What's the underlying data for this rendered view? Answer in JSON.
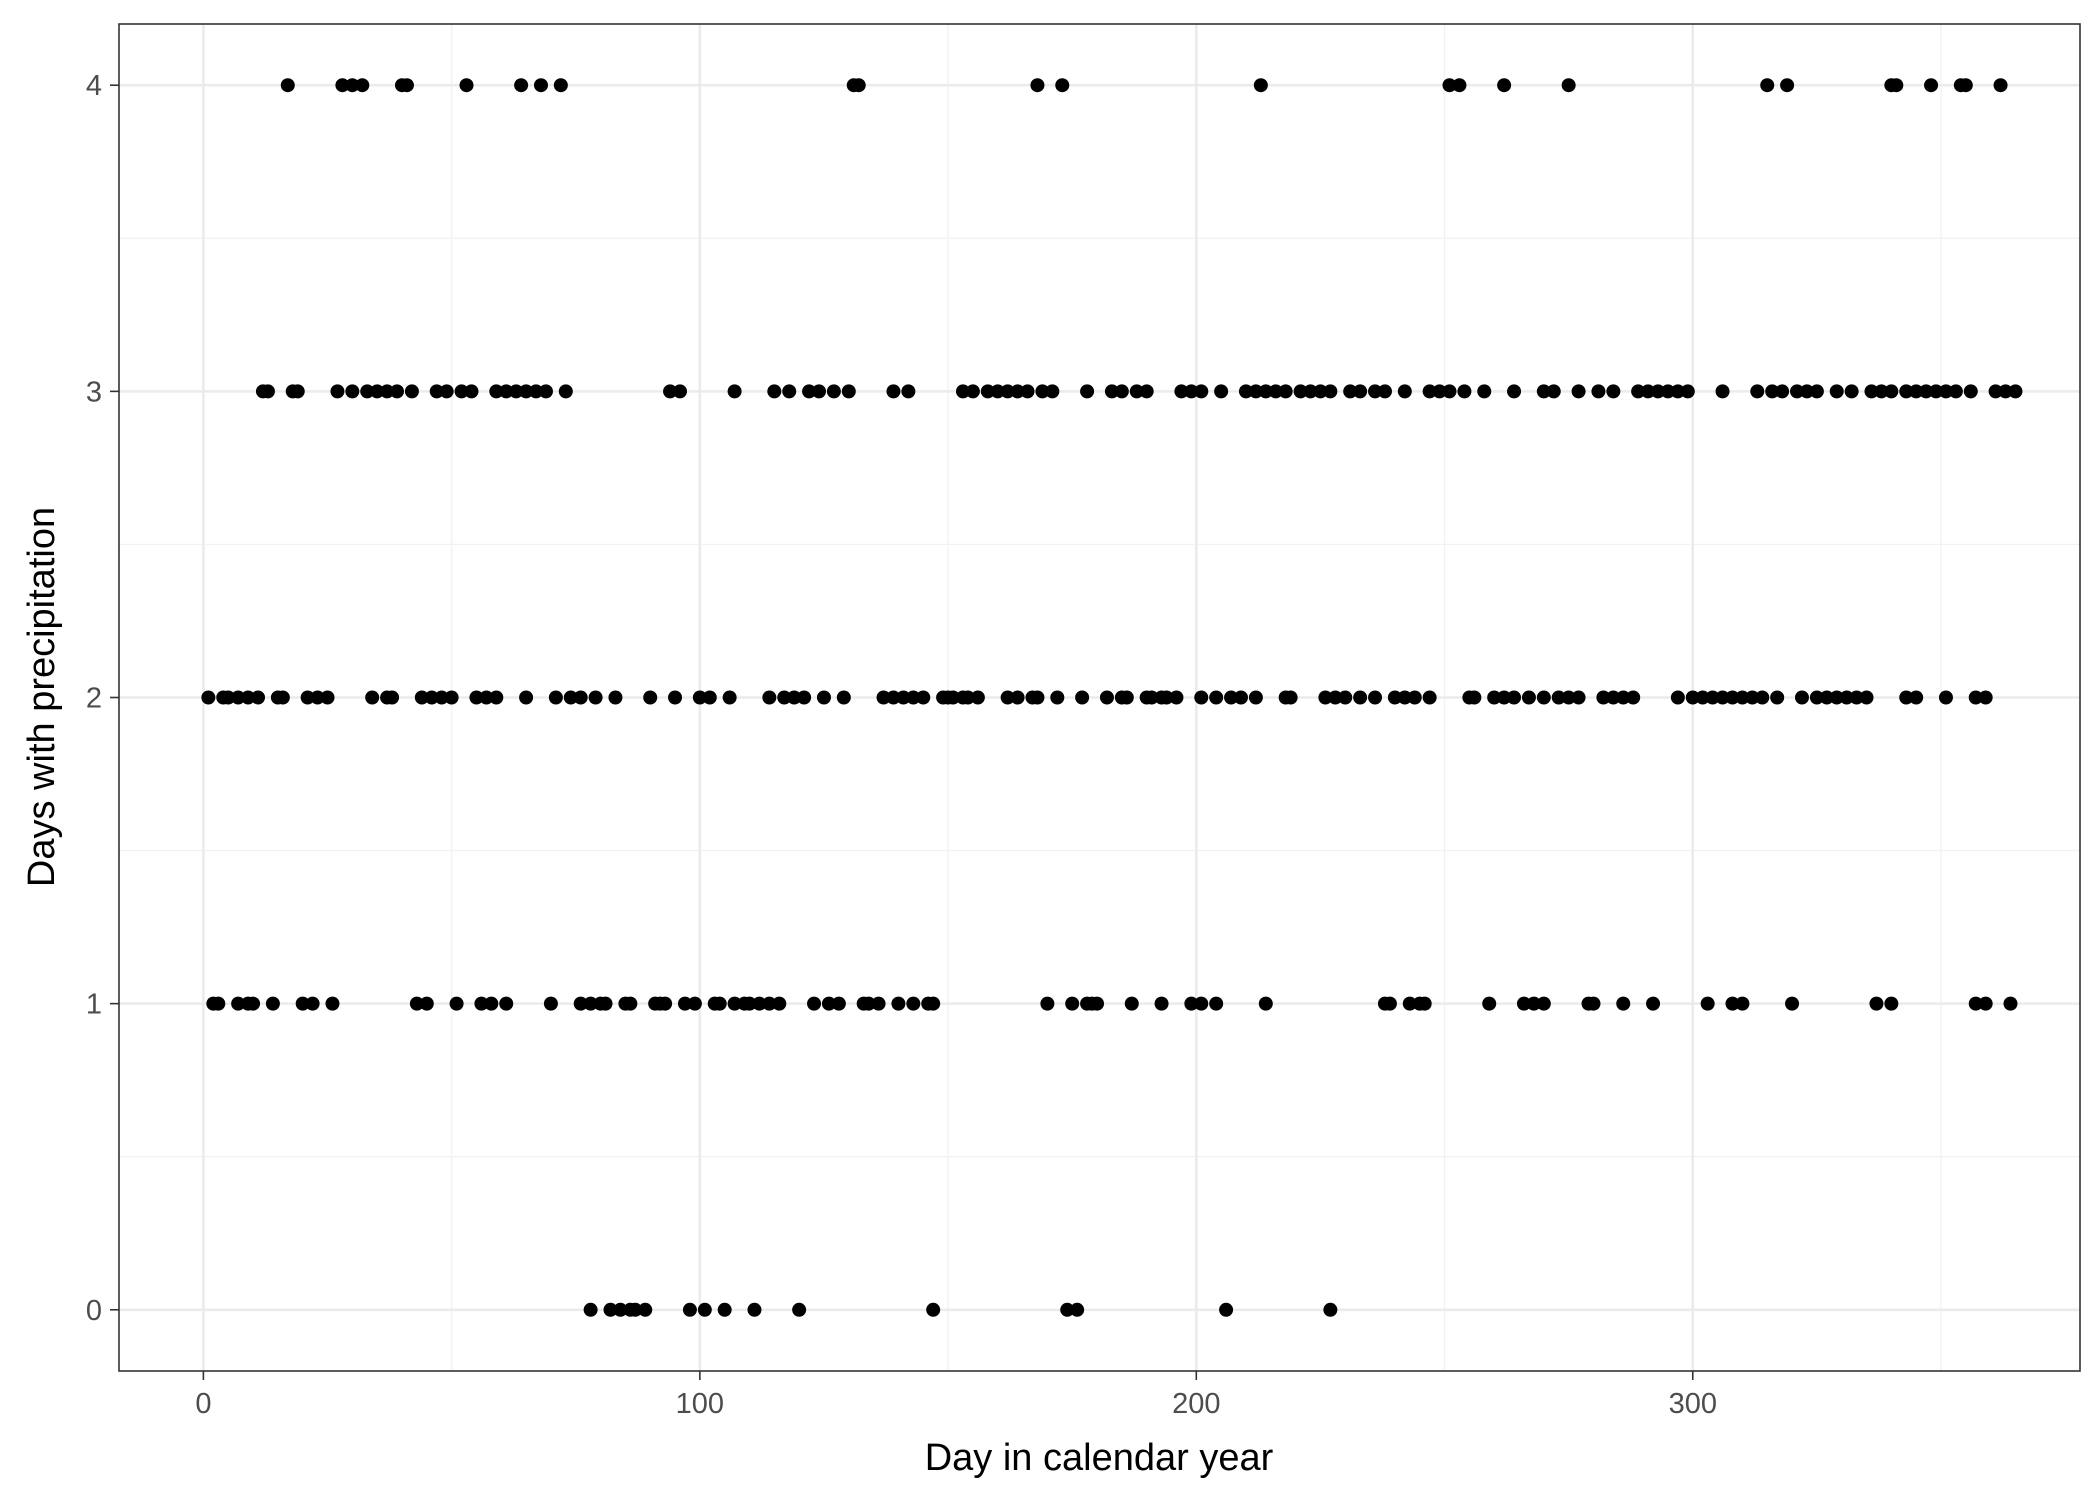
{
  "chart_data": {
    "type": "scatter",
    "title": "",
    "xlabel": "Day in calendar year",
    "ylabel": "Days with precipitation",
    "xlim": [
      -17,
      378
    ],
    "ylim": [
      -0.2,
      4.2
    ],
    "x_ticks": [
      0,
      100,
      200,
      300
    ],
    "x_tick_labels": [
      "0",
      "100",
      "200",
      "300"
    ],
    "y_ticks": [
      0,
      1,
      2,
      3,
      4
    ],
    "y_tick_labels": [
      "0",
      "1",
      "2",
      "3",
      "4"
    ],
    "grid": true,
    "legend": "none",
    "colors": {
      "point": "#000000",
      "grid_major": "#ebebeb",
      "grid_minor": "#f2f2f2",
      "panel_border": "#333333",
      "tick_text": "#4d4d4d"
    },
    "points": [
      {
        "day": 17,
        "value": 4
      },
      {
        "day": 28,
        "value": 4
      },
      {
        "day": 30,
        "value": 4
      },
      {
        "day": 32,
        "value": 4
      },
      {
        "day": 40,
        "value": 4
      },
      {
        "day": 41,
        "value": 4
      },
      {
        "day": 53,
        "value": 4
      },
      {
        "day": 64,
        "value": 4
      },
      {
        "day": 68,
        "value": 4
      },
      {
        "day": 72,
        "value": 4
      },
      {
        "day": 131,
        "value": 4
      },
      {
        "day": 132,
        "value": 4
      },
      {
        "day": 168,
        "value": 4
      },
      {
        "day": 173,
        "value": 4
      },
      {
        "day": 213,
        "value": 4
      },
      {
        "day": 251,
        "value": 4
      },
      {
        "day": 253,
        "value": 4
      },
      {
        "day": 262,
        "value": 4
      },
      {
        "day": 275,
        "value": 4
      },
      {
        "day": 315,
        "value": 4
      },
      {
        "day": 319,
        "value": 4
      },
      {
        "day": 340,
        "value": 4
      },
      {
        "day": 341,
        "value": 4
      },
      {
        "day": 348,
        "value": 4
      },
      {
        "day": 354,
        "value": 4
      },
      {
        "day": 355,
        "value": 4
      },
      {
        "day": 362,
        "value": 4
      },
      {
        "day": 12,
        "value": 3
      },
      {
        "day": 13,
        "value": 3
      },
      {
        "day": 18,
        "value": 3
      },
      {
        "day": 19,
        "value": 3
      },
      {
        "day": 27,
        "value": 3
      },
      {
        "day": 30,
        "value": 3
      },
      {
        "day": 33,
        "value": 3
      },
      {
        "day": 35,
        "value": 3
      },
      {
        "day": 37,
        "value": 3
      },
      {
        "day": 39,
        "value": 3
      },
      {
        "day": 42,
        "value": 3
      },
      {
        "day": 47,
        "value": 3
      },
      {
        "day": 49,
        "value": 3
      },
      {
        "day": 52,
        "value": 3
      },
      {
        "day": 54,
        "value": 3
      },
      {
        "day": 59,
        "value": 3
      },
      {
        "day": 61,
        "value": 3
      },
      {
        "day": 63,
        "value": 3
      },
      {
        "day": 65,
        "value": 3
      },
      {
        "day": 67,
        "value": 3
      },
      {
        "day": 69,
        "value": 3
      },
      {
        "day": 73,
        "value": 3
      },
      {
        "day": 94,
        "value": 3
      },
      {
        "day": 96,
        "value": 3
      },
      {
        "day": 107,
        "value": 3
      },
      {
        "day": 115,
        "value": 3
      },
      {
        "day": 118,
        "value": 3
      },
      {
        "day": 122,
        "value": 3
      },
      {
        "day": 124,
        "value": 3
      },
      {
        "day": 127,
        "value": 3
      },
      {
        "day": 130,
        "value": 3
      },
      {
        "day": 139,
        "value": 3
      },
      {
        "day": 142,
        "value": 3
      },
      {
        "day": 153,
        "value": 3
      },
      {
        "day": 155,
        "value": 3
      },
      {
        "day": 158,
        "value": 3
      },
      {
        "day": 160,
        "value": 3
      },
      {
        "day": 162,
        "value": 3
      },
      {
        "day": 164,
        "value": 3
      },
      {
        "day": 166,
        "value": 3
      },
      {
        "day": 169,
        "value": 3
      },
      {
        "day": 171,
        "value": 3
      },
      {
        "day": 178,
        "value": 3
      },
      {
        "day": 183,
        "value": 3
      },
      {
        "day": 185,
        "value": 3
      },
      {
        "day": 188,
        "value": 3
      },
      {
        "day": 190,
        "value": 3
      },
      {
        "day": 197,
        "value": 3
      },
      {
        "day": 199,
        "value": 3
      },
      {
        "day": 201,
        "value": 3
      },
      {
        "day": 205,
        "value": 3
      },
      {
        "day": 210,
        "value": 3
      },
      {
        "day": 212,
        "value": 3
      },
      {
        "day": 214,
        "value": 3
      },
      {
        "day": 216,
        "value": 3
      },
      {
        "day": 218,
        "value": 3
      },
      {
        "day": 221,
        "value": 3
      },
      {
        "day": 223,
        "value": 3
      },
      {
        "day": 225,
        "value": 3
      },
      {
        "day": 227,
        "value": 3
      },
      {
        "day": 231,
        "value": 3
      },
      {
        "day": 233,
        "value": 3
      },
      {
        "day": 236,
        "value": 3
      },
      {
        "day": 238,
        "value": 3
      },
      {
        "day": 242,
        "value": 3
      },
      {
        "day": 247,
        "value": 3
      },
      {
        "day": 249,
        "value": 3
      },
      {
        "day": 251,
        "value": 3
      },
      {
        "day": 254,
        "value": 3
      },
      {
        "day": 258,
        "value": 3
      },
      {
        "day": 264,
        "value": 3
      },
      {
        "day": 270,
        "value": 3
      },
      {
        "day": 272,
        "value": 3
      },
      {
        "day": 277,
        "value": 3
      },
      {
        "day": 281,
        "value": 3
      },
      {
        "day": 284,
        "value": 3
      },
      {
        "day": 289,
        "value": 3
      },
      {
        "day": 291,
        "value": 3
      },
      {
        "day": 293,
        "value": 3
      },
      {
        "day": 295,
        "value": 3
      },
      {
        "day": 297,
        "value": 3
      },
      {
        "day": 299,
        "value": 3
      },
      {
        "day": 306,
        "value": 3
      },
      {
        "day": 313,
        "value": 3
      },
      {
        "day": 316,
        "value": 3
      },
      {
        "day": 318,
        "value": 3
      },
      {
        "day": 321,
        "value": 3
      },
      {
        "day": 323,
        "value": 3
      },
      {
        "day": 325,
        "value": 3
      },
      {
        "day": 329,
        "value": 3
      },
      {
        "day": 332,
        "value": 3
      },
      {
        "day": 336,
        "value": 3
      },
      {
        "day": 338,
        "value": 3
      },
      {
        "day": 340,
        "value": 3
      },
      {
        "day": 343,
        "value": 3
      },
      {
        "day": 345,
        "value": 3
      },
      {
        "day": 347,
        "value": 3
      },
      {
        "day": 349,
        "value": 3
      },
      {
        "day": 351,
        "value": 3
      },
      {
        "day": 353,
        "value": 3
      },
      {
        "day": 356,
        "value": 3
      },
      {
        "day": 361,
        "value": 3
      },
      {
        "day": 363,
        "value": 3
      },
      {
        "day": 365,
        "value": 3
      },
      {
        "day": 1,
        "value": 2
      },
      {
        "day": 4,
        "value": 2
      },
      {
        "day": 5,
        "value": 2
      },
      {
        "day": 7,
        "value": 2
      },
      {
        "day": 9,
        "value": 2
      },
      {
        "day": 11,
        "value": 2
      },
      {
        "day": 15,
        "value": 2
      },
      {
        "day": 16,
        "value": 2
      },
      {
        "day": 21,
        "value": 2
      },
      {
        "day": 23,
        "value": 2
      },
      {
        "day": 25,
        "value": 2
      },
      {
        "day": 34,
        "value": 2
      },
      {
        "day": 37,
        "value": 2
      },
      {
        "day": 38,
        "value": 2
      },
      {
        "day": 44,
        "value": 2
      },
      {
        "day": 46,
        "value": 2
      },
      {
        "day": 48,
        "value": 2
      },
      {
        "day": 50,
        "value": 2
      },
      {
        "day": 55,
        "value": 2
      },
      {
        "day": 57,
        "value": 2
      },
      {
        "day": 59,
        "value": 2
      },
      {
        "day": 65,
        "value": 2
      },
      {
        "day": 71,
        "value": 2
      },
      {
        "day": 74,
        "value": 2
      },
      {
        "day": 76,
        "value": 2
      },
      {
        "day": 79,
        "value": 2
      },
      {
        "day": 83,
        "value": 2
      },
      {
        "day": 90,
        "value": 2
      },
      {
        "day": 95,
        "value": 2
      },
      {
        "day": 100,
        "value": 2
      },
      {
        "day": 102,
        "value": 2
      },
      {
        "day": 106,
        "value": 2
      },
      {
        "day": 114,
        "value": 2
      },
      {
        "day": 117,
        "value": 2
      },
      {
        "day": 119,
        "value": 2
      },
      {
        "day": 121,
        "value": 2
      },
      {
        "day": 125,
        "value": 2
      },
      {
        "day": 129,
        "value": 2
      },
      {
        "day": 137,
        "value": 2
      },
      {
        "day": 139,
        "value": 2
      },
      {
        "day": 141,
        "value": 2
      },
      {
        "day": 143,
        "value": 2
      },
      {
        "day": 145,
        "value": 2
      },
      {
        "day": 149,
        "value": 2
      },
      {
        "day": 150,
        "value": 2
      },
      {
        "day": 151,
        "value": 2
      },
      {
        "day": 153,
        "value": 2
      },
      {
        "day": 154,
        "value": 2
      },
      {
        "day": 156,
        "value": 2
      },
      {
        "day": 162,
        "value": 2
      },
      {
        "day": 164,
        "value": 2
      },
      {
        "day": 167,
        "value": 2
      },
      {
        "day": 168,
        "value": 2
      },
      {
        "day": 172,
        "value": 2
      },
      {
        "day": 177,
        "value": 2
      },
      {
        "day": 182,
        "value": 2
      },
      {
        "day": 185,
        "value": 2
      },
      {
        "day": 186,
        "value": 2
      },
      {
        "day": 190,
        "value": 2
      },
      {
        "day": 191,
        "value": 2
      },
      {
        "day": 193,
        "value": 2
      },
      {
        "day": 194,
        "value": 2
      },
      {
        "day": 196,
        "value": 2
      },
      {
        "day": 201,
        "value": 2
      },
      {
        "day": 204,
        "value": 2
      },
      {
        "day": 207,
        "value": 2
      },
      {
        "day": 209,
        "value": 2
      },
      {
        "day": 212,
        "value": 2
      },
      {
        "day": 218,
        "value": 2
      },
      {
        "day": 219,
        "value": 2
      },
      {
        "day": 226,
        "value": 2
      },
      {
        "day": 228,
        "value": 2
      },
      {
        "day": 230,
        "value": 2
      },
      {
        "day": 233,
        "value": 2
      },
      {
        "day": 236,
        "value": 2
      },
      {
        "day": 240,
        "value": 2
      },
      {
        "day": 242,
        "value": 2
      },
      {
        "day": 244,
        "value": 2
      },
      {
        "day": 247,
        "value": 2
      },
      {
        "day": 255,
        "value": 2
      },
      {
        "day": 256,
        "value": 2
      },
      {
        "day": 260,
        "value": 2
      },
      {
        "day": 262,
        "value": 2
      },
      {
        "day": 264,
        "value": 2
      },
      {
        "day": 267,
        "value": 2
      },
      {
        "day": 270,
        "value": 2
      },
      {
        "day": 273,
        "value": 2
      },
      {
        "day": 275,
        "value": 2
      },
      {
        "day": 277,
        "value": 2
      },
      {
        "day": 282,
        "value": 2
      },
      {
        "day": 284,
        "value": 2
      },
      {
        "day": 286,
        "value": 2
      },
      {
        "day": 288,
        "value": 2
      },
      {
        "day": 297,
        "value": 2
      },
      {
        "day": 300,
        "value": 2
      },
      {
        "day": 302,
        "value": 2
      },
      {
        "day": 304,
        "value": 2
      },
      {
        "day": 306,
        "value": 2
      },
      {
        "day": 308,
        "value": 2
      },
      {
        "day": 310,
        "value": 2
      },
      {
        "day": 312,
        "value": 2
      },
      {
        "day": 314,
        "value": 2
      },
      {
        "day": 317,
        "value": 2
      },
      {
        "day": 322,
        "value": 2
      },
      {
        "day": 325,
        "value": 2
      },
      {
        "day": 327,
        "value": 2
      },
      {
        "day": 329,
        "value": 2
      },
      {
        "day": 331,
        "value": 2
      },
      {
        "day": 333,
        "value": 2
      },
      {
        "day": 335,
        "value": 2
      },
      {
        "day": 343,
        "value": 2
      },
      {
        "day": 345,
        "value": 2
      },
      {
        "day": 351,
        "value": 2
      },
      {
        "day": 357,
        "value": 2
      },
      {
        "day": 359,
        "value": 2
      },
      {
        "day": 2,
        "value": 1
      },
      {
        "day": 3,
        "value": 1
      },
      {
        "day": 7,
        "value": 1
      },
      {
        "day": 9,
        "value": 1
      },
      {
        "day": 10,
        "value": 1
      },
      {
        "day": 14,
        "value": 1
      },
      {
        "day": 20,
        "value": 1
      },
      {
        "day": 22,
        "value": 1
      },
      {
        "day": 26,
        "value": 1
      },
      {
        "day": 43,
        "value": 1
      },
      {
        "day": 45,
        "value": 1
      },
      {
        "day": 51,
        "value": 1
      },
      {
        "day": 56,
        "value": 1
      },
      {
        "day": 58,
        "value": 1
      },
      {
        "day": 61,
        "value": 1
      },
      {
        "day": 70,
        "value": 1
      },
      {
        "day": 76,
        "value": 1
      },
      {
        "day": 78,
        "value": 1
      },
      {
        "day": 80,
        "value": 1
      },
      {
        "day": 81,
        "value": 1
      },
      {
        "day": 85,
        "value": 1
      },
      {
        "day": 86,
        "value": 1
      },
      {
        "day": 91,
        "value": 1
      },
      {
        "day": 92,
        "value": 1
      },
      {
        "day": 93,
        "value": 1
      },
      {
        "day": 97,
        "value": 1
      },
      {
        "day": 99,
        "value": 1
      },
      {
        "day": 103,
        "value": 1
      },
      {
        "day": 104,
        "value": 1
      },
      {
        "day": 107,
        "value": 1
      },
      {
        "day": 109,
        "value": 1
      },
      {
        "day": 110,
        "value": 1
      },
      {
        "day": 112,
        "value": 1
      },
      {
        "day": 114,
        "value": 1
      },
      {
        "day": 116,
        "value": 1
      },
      {
        "day": 123,
        "value": 1
      },
      {
        "day": 126,
        "value": 1
      },
      {
        "day": 128,
        "value": 1
      },
      {
        "day": 133,
        "value": 1
      },
      {
        "day": 134,
        "value": 1
      },
      {
        "day": 136,
        "value": 1
      },
      {
        "day": 140,
        "value": 1
      },
      {
        "day": 143,
        "value": 1
      },
      {
        "day": 146,
        "value": 1
      },
      {
        "day": 147,
        "value": 1
      },
      {
        "day": 170,
        "value": 1
      },
      {
        "day": 175,
        "value": 1
      },
      {
        "day": 178,
        "value": 1
      },
      {
        "day": 179,
        "value": 1
      },
      {
        "day": 180,
        "value": 1
      },
      {
        "day": 187,
        "value": 1
      },
      {
        "day": 193,
        "value": 1
      },
      {
        "day": 199,
        "value": 1
      },
      {
        "day": 201,
        "value": 1
      },
      {
        "day": 204,
        "value": 1
      },
      {
        "day": 214,
        "value": 1
      },
      {
        "day": 238,
        "value": 1
      },
      {
        "day": 239,
        "value": 1
      },
      {
        "day": 243,
        "value": 1
      },
      {
        "day": 245,
        "value": 1
      },
      {
        "day": 246,
        "value": 1
      },
      {
        "day": 259,
        "value": 1
      },
      {
        "day": 266,
        "value": 1
      },
      {
        "day": 268,
        "value": 1
      },
      {
        "day": 270,
        "value": 1
      },
      {
        "day": 279,
        "value": 1
      },
      {
        "day": 280,
        "value": 1
      },
      {
        "day": 286,
        "value": 1
      },
      {
        "day": 292,
        "value": 1
      },
      {
        "day": 303,
        "value": 1
      },
      {
        "day": 308,
        "value": 1
      },
      {
        "day": 310,
        "value": 1
      },
      {
        "day": 320,
        "value": 1
      },
      {
        "day": 337,
        "value": 1
      },
      {
        "day": 340,
        "value": 1
      },
      {
        "day": 357,
        "value": 1
      },
      {
        "day": 359,
        "value": 1
      },
      {
        "day": 364,
        "value": 1
      },
      {
        "day": 78,
        "value": 0
      },
      {
        "day": 82,
        "value": 0
      },
      {
        "day": 84,
        "value": 0
      },
      {
        "day": 86,
        "value": 0
      },
      {
        "day": 87,
        "value": 0
      },
      {
        "day": 89,
        "value": 0
      },
      {
        "day": 98,
        "value": 0
      },
      {
        "day": 101,
        "value": 0
      },
      {
        "day": 105,
        "value": 0
      },
      {
        "day": 111,
        "value": 0
      },
      {
        "day": 120,
        "value": 0
      },
      {
        "day": 147,
        "value": 0
      },
      {
        "day": 174,
        "value": 0
      },
      {
        "day": 176,
        "value": 0
      },
      {
        "day": 206,
        "value": 0
      },
      {
        "day": 227,
        "value": 0
      }
    ]
  }
}
